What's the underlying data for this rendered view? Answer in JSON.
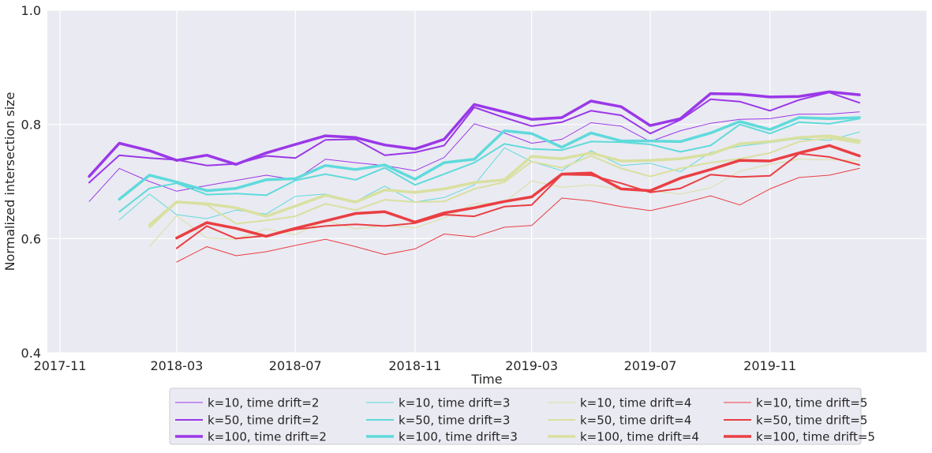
{
  "chart_data": {
    "type": "line",
    "title": "",
    "xlabel": "Time",
    "ylabel": "Normalized intersection size",
    "ylim": [
      0.4,
      1.0
    ],
    "xlim": [
      "2017-10-19",
      "2020-04-10"
    ],
    "yticks": [
      0.4,
      0.6,
      0.8,
      1.0
    ],
    "ytick_labels": [
      "0.4",
      "0.6",
      "0.8",
      "1.0"
    ],
    "xticks": [
      "2017-11-01",
      "2018-03-01",
      "2018-07-01",
      "2018-11-01",
      "2019-03-01",
      "2019-07-01",
      "2019-11-01"
    ],
    "xtick_labels": [
      "2017-11",
      "2018-03",
      "2018-07",
      "2018-11",
      "2019-03",
      "2019-07",
      "2019-11"
    ],
    "grid": true,
    "legend_position": "bottom-center",
    "background": "#eaeaf2",
    "x": [
      "2017-12-01",
      "2018-01-01",
      "2018-02-01",
      "2018-03-01",
      "2018-04-01",
      "2018-05-01",
      "2018-06-01",
      "2018-07-01",
      "2018-08-01",
      "2018-09-01",
      "2018-10-01",
      "2018-11-01",
      "2018-12-01",
      "2019-01-01",
      "2019-02-01",
      "2019-03-01",
      "2019-04-01",
      "2019-05-01",
      "2019-06-01",
      "2019-07-01",
      "2019-08-01",
      "2019-09-01",
      "2019-10-01",
      "2019-11-01",
      "2019-12-01",
      "2020-01-01",
      "2020-02-01"
    ],
    "series": [
      {
        "name": "k=10, time drift=2",
        "color": "#9a38e8",
        "width": 1,
        "values": [
          0.665,
          0.723,
          0.7,
          0.683,
          0.693,
          0.702,
          0.711,
          0.703,
          0.739,
          0.733,
          0.728,
          0.719,
          0.742,
          0.801,
          0.785,
          0.767,
          0.774,
          0.803,
          0.797,
          0.77,
          0.789,
          0.802,
          0.809,
          0.81,
          0.818,
          0.818,
          0.822
        ]
      },
      {
        "name": "k=50, time drift=2",
        "color": "#9a38e8",
        "width": 2,
        "values": [
          0.698,
          0.746,
          0.741,
          0.738,
          0.728,
          0.731,
          0.745,
          0.741,
          0.773,
          0.774,
          0.746,
          0.751,
          0.763,
          0.83,
          0.812,
          0.797,
          0.804,
          0.824,
          0.816,
          0.784,
          0.808,
          0.844,
          0.84,
          0.824,
          0.843,
          0.856,
          0.838
        ]
      },
      {
        "name": "k=100, time drift=2",
        "color": "#9a38e8",
        "width": 3.5,
        "values": [
          0.709,
          0.767,
          0.754,
          0.737,
          0.746,
          0.73,
          0.75,
          0.765,
          0.78,
          0.777,
          0.764,
          0.757,
          0.774,
          0.835,
          0.822,
          0.809,
          0.812,
          0.841,
          0.831,
          0.798,
          0.81,
          0.854,
          0.853,
          0.848,
          0.849,
          0.857,
          0.852
        ]
      },
      {
        "name": "k=10, time drift=3",
        "color": "#5fdadb",
        "width": 1,
        "values": [
          null,
          0.633,
          0.678,
          0.642,
          0.635,
          0.65,
          0.643,
          0.674,
          0.678,
          0.665,
          0.692,
          0.664,
          0.672,
          0.694,
          0.759,
          0.735,
          0.719,
          0.754,
          0.728,
          0.732,
          0.717,
          0.751,
          0.762,
          0.768,
          0.775,
          0.772,
          0.787
        ]
      },
      {
        "name": "k=50, time drift=3",
        "color": "#5fdadb",
        "width": 2,
        "values": [
          null,
          0.647,
          0.688,
          0.697,
          0.677,
          0.679,
          0.676,
          0.702,
          0.713,
          0.703,
          0.724,
          0.694,
          0.713,
          0.733,
          0.766,
          0.757,
          0.755,
          0.77,
          0.769,
          0.765,
          0.752,
          0.763,
          0.8,
          0.784,
          0.804,
          0.801,
          0.81
        ]
      },
      {
        "name": "k=100, time drift=3",
        "color": "#5fdadb",
        "width": 3.5,
        "values": [
          null,
          0.669,
          0.711,
          0.699,
          0.684,
          0.688,
          0.703,
          0.705,
          0.728,
          0.721,
          0.729,
          0.704,
          0.733,
          0.739,
          0.789,
          0.784,
          0.76,
          0.785,
          0.771,
          0.771,
          0.77,
          0.785,
          0.805,
          0.791,
          0.812,
          0.81,
          0.812
        ]
      },
      {
        "name": "k=10, time drift=4",
        "color": "#d9e0a0",
        "width": 1,
        "values": [
          null,
          null,
          0.586,
          0.64,
          0.601,
          0.599,
          0.617,
          0.607,
          0.632,
          0.617,
          0.623,
          0.619,
          0.636,
          0.661,
          0.663,
          0.701,
          0.69,
          0.694,
          0.686,
          0.684,
          0.678,
          0.689,
          0.718,
          0.73,
          0.739,
          0.738,
          0.737
        ]
      },
      {
        "name": "k=50, time drift=4",
        "color": "#d9e0a0",
        "width": 2,
        "values": [
          null,
          null,
          0.619,
          0.664,
          0.659,
          0.626,
          0.632,
          0.639,
          0.661,
          0.65,
          0.668,
          0.664,
          0.665,
          0.687,
          0.699,
          0.735,
          0.724,
          0.745,
          0.723,
          0.709,
          0.723,
          0.733,
          0.74,
          0.75,
          0.77,
          0.776,
          0.767
        ]
      },
      {
        "name": "k=100, time drift=4",
        "color": "#d9e0a0",
        "width": 3.5,
        "values": [
          null,
          null,
          0.624,
          0.664,
          0.661,
          0.654,
          0.639,
          0.657,
          0.676,
          0.664,
          0.685,
          0.681,
          0.687,
          0.698,
          0.703,
          0.744,
          0.74,
          0.75,
          0.736,
          0.737,
          0.74,
          0.748,
          0.766,
          0.77,
          0.777,
          0.78,
          0.771
        ]
      },
      {
        "name": "k=10, time drift=5",
        "color": "#e93f43",
        "width": 1,
        "values": [
          null,
          null,
          null,
          0.559,
          0.586,
          0.57,
          0.577,
          0.588,
          0.599,
          0.586,
          0.572,
          0.582,
          0.608,
          0.603,
          0.62,
          0.623,
          0.671,
          0.666,
          0.656,
          0.649,
          0.661,
          0.675,
          0.659,
          0.687,
          0.707,
          0.711,
          0.723
        ]
      },
      {
        "name": "k=50, time drift=5",
        "color": "#e93f43",
        "width": 2,
        "values": [
          null,
          null,
          null,
          0.583,
          0.622,
          0.6,
          0.605,
          0.616,
          0.622,
          0.625,
          0.622,
          0.627,
          0.642,
          0.639,
          0.656,
          0.659,
          0.712,
          0.711,
          0.697,
          0.681,
          0.688,
          0.712,
          0.708,
          0.71,
          0.749,
          0.743,
          0.729
        ]
      },
      {
        "name": "k=100, time drift=5",
        "color": "#e93f43",
        "width": 3.5,
        "values": [
          null,
          null,
          null,
          0.601,
          0.628,
          0.618,
          0.604,
          0.618,
          0.631,
          0.644,
          0.647,
          0.629,
          0.645,
          0.654,
          0.665,
          0.673,
          0.713,
          0.715,
          0.687,
          0.684,
          0.706,
          0.721,
          0.737,
          0.736,
          0.75,
          0.763,
          0.745
        ]
      }
    ]
  }
}
